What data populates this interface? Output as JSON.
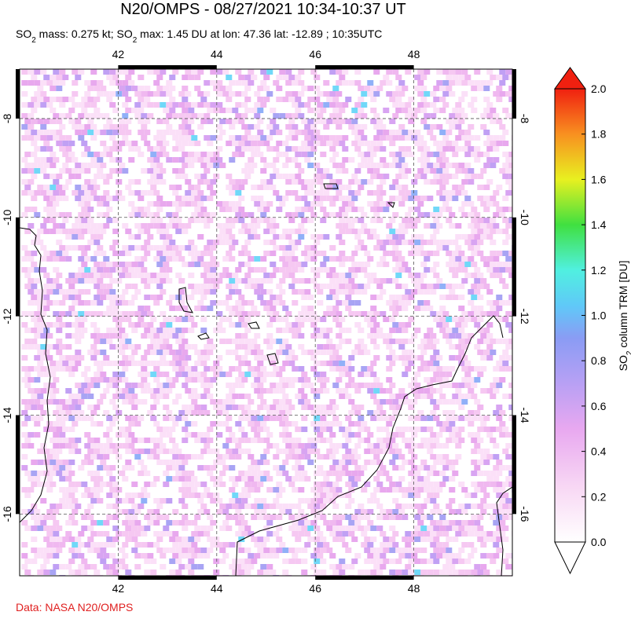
{
  "header": {
    "title": "N20/OMPS - 08/27/2021 10:34-10:37 UT",
    "subtitle_parts": [
      "SO",
      "2",
      " mass: 0.275 kt; SO",
      "2",
      " max: 1.45 DU at lon: 47.36 lat: -12.89 ; 10:35UTC"
    ]
  },
  "map": {
    "lon_range": [
      40,
      50
    ],
    "lat_range": [
      -7,
      -17.25
    ],
    "lon_ticks": [
      42,
      44,
      46,
      48
    ],
    "lat_ticks": [
      -8,
      -10,
      -12,
      -14,
      -16
    ]
  },
  "colorbar": {
    "label_parts": [
      "SO",
      "2",
      " column TRM [DU]"
    ],
    "range": [
      0,
      2
    ],
    "ticks": [
      {
        "value": 0,
        "label": "0.0"
      },
      {
        "value": 0.2,
        "label": "0.2"
      },
      {
        "value": 0.4,
        "label": "0.4"
      },
      {
        "value": 0.6,
        "label": "0.6"
      },
      {
        "value": 0.8,
        "label": "0.8"
      },
      {
        "value": 1,
        "label": "1.0"
      },
      {
        "value": 1.2,
        "label": "1.2"
      },
      {
        "value": 1.4,
        "label": "1.4"
      },
      {
        "value": 1.6,
        "label": "1.6"
      },
      {
        "value": 1.8,
        "label": "1.8"
      },
      {
        "value": 2,
        "label": "2.0"
      }
    ]
  },
  "footer": {
    "credit": "Data: NASA N20/OMPS"
  }
}
